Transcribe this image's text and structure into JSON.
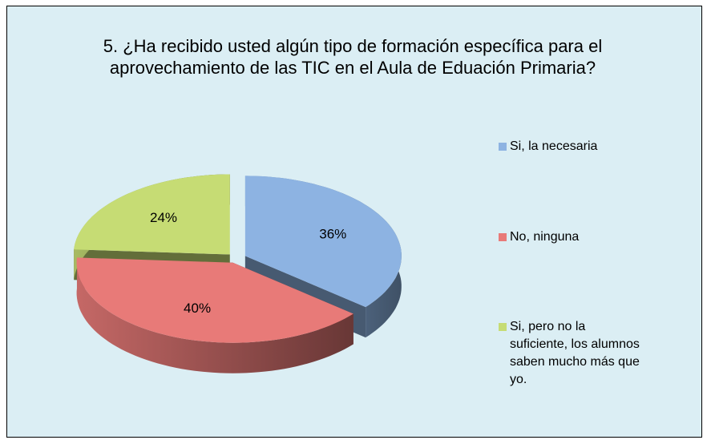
{
  "chart_data": {
    "type": "pie",
    "title": "5. ¿Ha recibido usted algún tipo de formación específica para el aprovechamiento de las TIC en el Aula de Eduación Primaria?",
    "categories": [
      "Si, la necesaria",
      "No, ninguna",
      "Si, pero no la suficiente, los alumnos saben mucho más que yo."
    ],
    "values": [
      36,
      40,
      24
    ],
    "value_labels": [
      "36%",
      "40%",
      "24%"
    ],
    "colors": [
      "#8db3e2",
      "#e87a78",
      "#c6dc74"
    ],
    "legend": "right"
  }
}
